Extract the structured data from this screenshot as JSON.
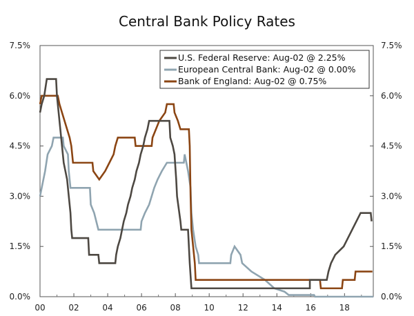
{
  "chart_data": {
    "type": "line",
    "title": "Central Bank Policy Rates",
    "xlabel": "",
    "ylabel": "",
    "xlim": [
      2000,
      2019.7
    ],
    "ylim": [
      0,
      7.5
    ],
    "x_ticks": [
      2000,
      2002,
      2004,
      2006,
      2008,
      2010,
      2012,
      2014,
      2016,
      2018
    ],
    "x_tick_labels": [
      "00",
      "02",
      "04",
      "06",
      "08",
      "10",
      "12",
      "14",
      "16",
      "18"
    ],
    "y_ticks": [
      0,
      1.5,
      3,
      4.5,
      6,
      7.5
    ],
    "y_tick_labels": [
      "0.0%",
      "1.5%",
      "3.0%",
      "4.5%",
      "6.0%",
      "7.5%"
    ],
    "legend_position": "top-right",
    "series": [
      {
        "name": "U.S. Federal Reserve: Aug-02 @ 2.25%",
        "color": "#4d4842",
        "points": [
          [
            2000,
            5.5
          ],
          [
            2000.1,
            5.75
          ],
          [
            2000.25,
            6.0
          ],
          [
            2000.4,
            6.5
          ],
          [
            2000.95,
            6.5
          ],
          [
            2001.0,
            6.0
          ],
          [
            2001.1,
            5.5
          ],
          [
            2001.2,
            5.0
          ],
          [
            2001.3,
            4.5
          ],
          [
            2001.4,
            4.0
          ],
          [
            2001.5,
            3.75
          ],
          [
            2001.6,
            3.5
          ],
          [
            2001.7,
            3.0
          ],
          [
            2001.8,
            2.5
          ],
          [
            2001.85,
            2.0
          ],
          [
            2001.9,
            1.75
          ],
          [
            2002.85,
            1.75
          ],
          [
            2002.9,
            1.25
          ],
          [
            2003.45,
            1.25
          ],
          [
            2003.5,
            1.0
          ],
          [
            2004.45,
            1.0
          ],
          [
            2004.5,
            1.25
          ],
          [
            2004.6,
            1.5
          ],
          [
            2004.75,
            1.75
          ],
          [
            2004.85,
            2.0
          ],
          [
            2004.95,
            2.25
          ],
          [
            2005.1,
            2.5
          ],
          [
            2005.2,
            2.75
          ],
          [
            2005.35,
            3.0
          ],
          [
            2005.45,
            3.25
          ],
          [
            2005.6,
            3.5
          ],
          [
            2005.7,
            3.75
          ],
          [
            2005.85,
            4.0
          ],
          [
            2005.95,
            4.25
          ],
          [
            2006.1,
            4.5
          ],
          [
            2006.2,
            4.75
          ],
          [
            2006.35,
            5.0
          ],
          [
            2006.45,
            5.25
          ],
          [
            2007.65,
            5.25
          ],
          [
            2007.7,
            4.75
          ],
          [
            2007.85,
            4.5
          ],
          [
            2007.95,
            4.25
          ],
          [
            2008.05,
            3.5
          ],
          [
            2008.1,
            3.0
          ],
          [
            2008.3,
            2.25
          ],
          [
            2008.35,
            2.0
          ],
          [
            2008.75,
            2.0
          ],
          [
            2008.8,
            1.5
          ],
          [
            2008.85,
            1.0
          ],
          [
            2008.95,
            0.25
          ],
          [
            2015.95,
            0.25
          ],
          [
            2015.95,
            0.5
          ],
          [
            2016.95,
            0.5
          ],
          [
            2017.05,
            0.75
          ],
          [
            2017.2,
            1.0
          ],
          [
            2017.45,
            1.25
          ],
          [
            2017.95,
            1.5
          ],
          [
            2018.2,
            1.75
          ],
          [
            2018.45,
            2.0
          ],
          [
            2018.7,
            2.25
          ],
          [
            2018.95,
            2.5
          ],
          [
            2019.55,
            2.5
          ],
          [
            2019.6,
            2.25
          ]
        ]
      },
      {
        "name": "European Central Bank: Aug-02 @ 0.00%",
        "color": "#8fa4b0",
        "points": [
          [
            2000,
            3.0
          ],
          [
            2000.1,
            3.25
          ],
          [
            2000.2,
            3.5
          ],
          [
            2000.3,
            3.75
          ],
          [
            2000.45,
            4.25
          ],
          [
            2000.7,
            4.5
          ],
          [
            2000.8,
            4.75
          ],
          [
            2001.35,
            4.75
          ],
          [
            2001.4,
            4.5
          ],
          [
            2001.65,
            4.25
          ],
          [
            2001.7,
            3.75
          ],
          [
            2001.8,
            3.25
          ],
          [
            2002.95,
            3.25
          ],
          [
            2003.0,
            2.75
          ],
          [
            2003.2,
            2.5
          ],
          [
            2003.45,
            2.0
          ],
          [
            2005.95,
            2.0
          ],
          [
            2006.0,
            2.25
          ],
          [
            2006.2,
            2.5
          ],
          [
            2006.45,
            2.75
          ],
          [
            2006.6,
            3.0
          ],
          [
            2006.75,
            3.25
          ],
          [
            2006.95,
            3.5
          ],
          [
            2007.2,
            3.75
          ],
          [
            2007.5,
            4.0
          ],
          [
            2008.5,
            4.0
          ],
          [
            2008.55,
            4.25
          ],
          [
            2008.75,
            3.75
          ],
          [
            2008.9,
            3.25
          ],
          [
            2008.95,
            2.5
          ],
          [
            2009.05,
            2.0
          ],
          [
            2009.2,
            1.5
          ],
          [
            2009.35,
            1.25
          ],
          [
            2009.4,
            1.0
          ],
          [
            2011.25,
            1.0
          ],
          [
            2011.3,
            1.25
          ],
          [
            2011.5,
            1.5
          ],
          [
            2011.85,
            1.25
          ],
          [
            2011.95,
            1.0
          ],
          [
            2012.5,
            0.75
          ],
          [
            2013.3,
            0.5
          ],
          [
            2013.85,
            0.25
          ],
          [
            2014.45,
            0.15
          ],
          [
            2014.7,
            0.05
          ],
          [
            2016.2,
            0.05
          ],
          [
            2016.25,
            0.0
          ],
          [
            2019.7,
            0.0
          ]
        ]
      },
      {
        "name": "Bank of England: Aug-02 @ 0.75%",
        "color": "#8b4513",
        "points": [
          [
            2000,
            5.75
          ],
          [
            2000.1,
            6.0
          ],
          [
            2001.05,
            6.0
          ],
          [
            2001.15,
            5.75
          ],
          [
            2001.3,
            5.5
          ],
          [
            2001.45,
            5.25
          ],
          [
            2001.6,
            5.0
          ],
          [
            2001.75,
            4.75
          ],
          [
            2001.85,
            4.5
          ],
          [
            2001.95,
            4.0
          ],
          [
            2003.1,
            4.0
          ],
          [
            2003.15,
            3.75
          ],
          [
            2003.5,
            3.5
          ],
          [
            2003.85,
            3.75
          ],
          [
            2004.1,
            4.0
          ],
          [
            2004.35,
            4.25
          ],
          [
            2004.45,
            4.5
          ],
          [
            2004.6,
            4.75
          ],
          [
            2005.6,
            4.75
          ],
          [
            2005.65,
            4.5
          ],
          [
            2006.6,
            4.5
          ],
          [
            2006.65,
            4.75
          ],
          [
            2006.85,
            5.0
          ],
          [
            2007.05,
            5.25
          ],
          [
            2007.4,
            5.5
          ],
          [
            2007.5,
            5.75
          ],
          [
            2007.9,
            5.75
          ],
          [
            2007.95,
            5.5
          ],
          [
            2008.15,
            5.25
          ],
          [
            2008.3,
            5.0
          ],
          [
            2008.8,
            5.0
          ],
          [
            2008.85,
            4.5
          ],
          [
            2008.9,
            3.0
          ],
          [
            2008.95,
            2.0
          ],
          [
            2009.05,
            1.5
          ],
          [
            2009.15,
            1.0
          ],
          [
            2009.2,
            0.5
          ],
          [
            2016.55,
            0.5
          ],
          [
            2016.6,
            0.25
          ],
          [
            2017.85,
            0.25
          ],
          [
            2017.9,
            0.5
          ],
          [
            2018.6,
            0.5
          ],
          [
            2018.65,
            0.75
          ],
          [
            2019.65,
            0.75
          ]
        ]
      }
    ]
  }
}
